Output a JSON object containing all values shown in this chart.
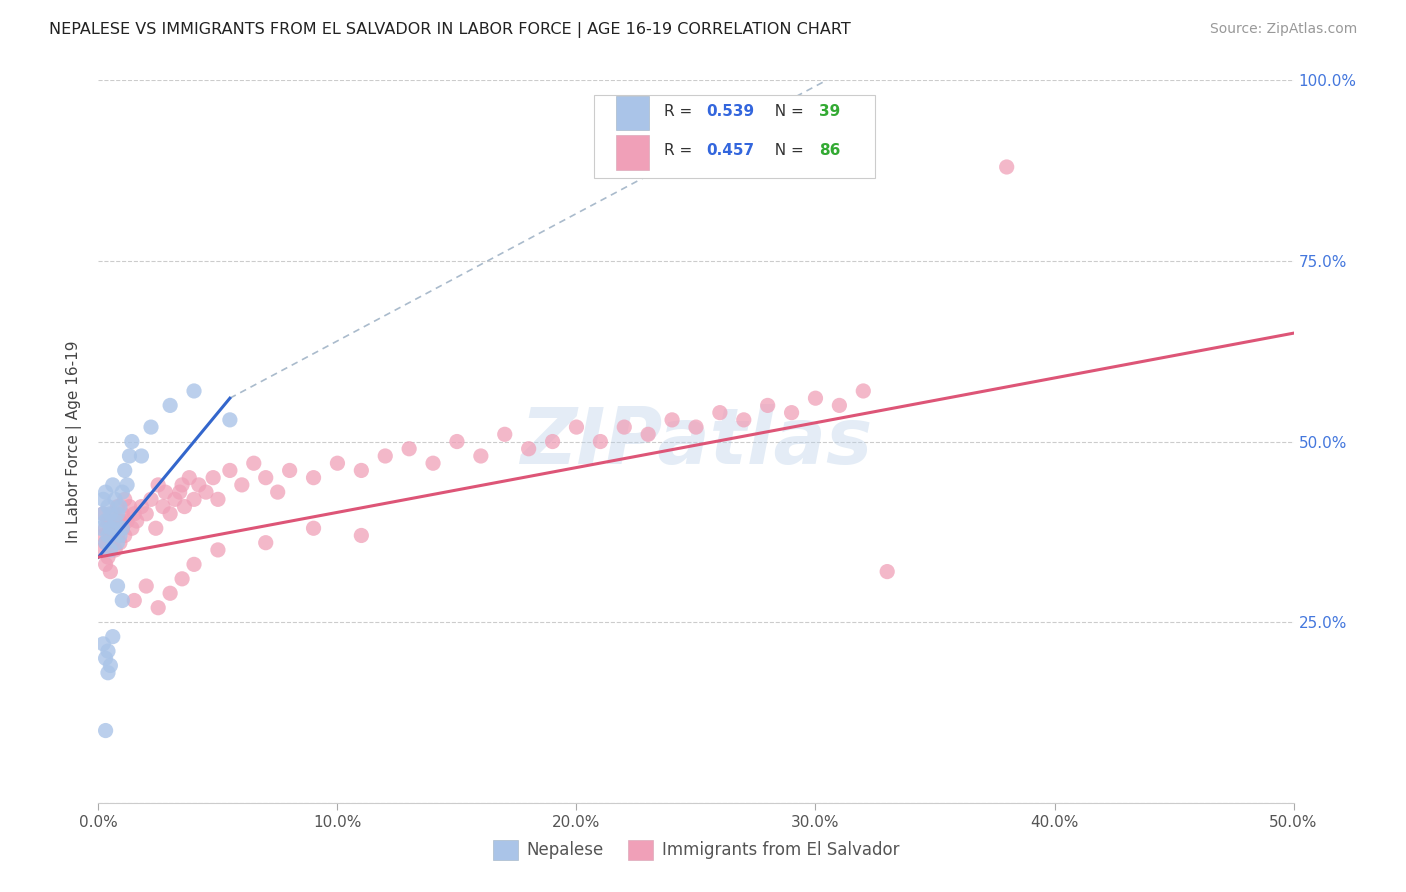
{
  "title": "NEPALESE VS IMMIGRANTS FROM EL SALVADOR IN LABOR FORCE | AGE 16-19 CORRELATION CHART",
  "source": "Source: ZipAtlas.com",
  "ylabel_left": "In Labor Force | Age 16-19",
  "xlim": [
    0.0,
    0.5
  ],
  "ylim": [
    0.0,
    1.0
  ],
  "xtick_vals": [
    0.0,
    0.1,
    0.2,
    0.3,
    0.4,
    0.5
  ],
  "xtick_labels": [
    "0.0%",
    "10.0%",
    "20.0%",
    "30.0%",
    "40.0%",
    "50.0%"
  ],
  "ytick_vals": [
    0.25,
    0.5,
    0.75,
    1.0
  ],
  "ytick_labels": [
    "25.0%",
    "50.0%",
    "75.0%",
    "100.0%"
  ],
  "nepalese_color": "#aac4e8",
  "el_salvador_color": "#f0a0b8",
  "nepalese_line_color": "#3366cc",
  "el_salvador_line_color": "#dd5577",
  "background_color": "#ffffff",
  "grid_color": "#cccccc",
  "watermark_text": "ZIPatlas",
  "watermark_color": "#b8cfe8",
  "right_axis_color": "#4477dd",
  "legend_R_color": "#3366dd",
  "legend_N_color": "#33aa33",
  "nepalese_R": "0.539",
  "nepalese_N": "39",
  "el_salvador_R": "0.457",
  "el_salvador_N": "86"
}
